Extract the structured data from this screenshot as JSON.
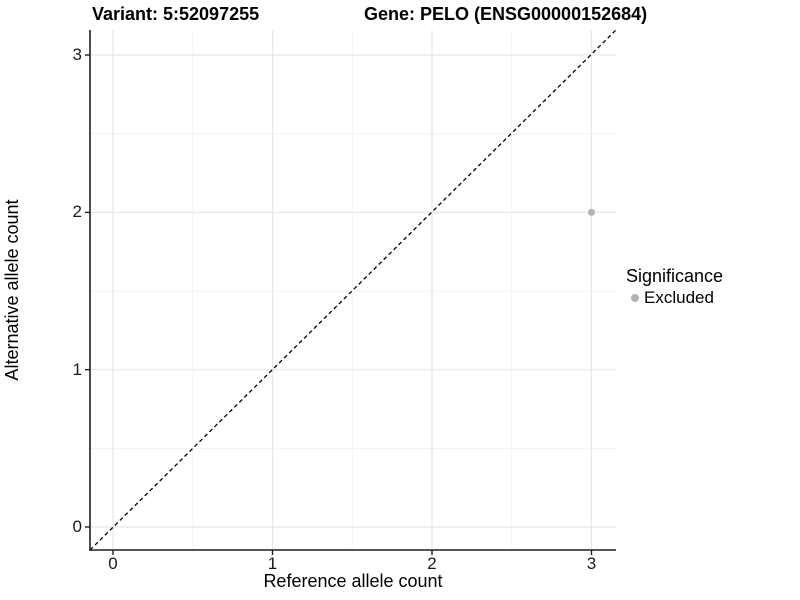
{
  "chart_data": {
    "type": "scatter",
    "title_left": "Variant: 5:52097255",
    "title_right": "Gene: PELO (ENSG00000152684)",
    "xlabel": "Reference allele count",
    "ylabel": "Alternative allele count",
    "xlim": [
      -0.15,
      3.15
    ],
    "ylim": [
      -0.15,
      3.15
    ],
    "x_ticks": [
      0,
      1,
      2,
      3
    ],
    "y_ticks": [
      0,
      1,
      2,
      3
    ],
    "x_tick_labels": [
      "0",
      "1",
      "2",
      "3"
    ],
    "y_tick_labels": [
      "0",
      "1",
      "2",
      "3"
    ],
    "grid": "on",
    "series": [
      {
        "name": "Excluded",
        "color": "#b3b3b3",
        "points": [
          {
            "x": 3,
            "y": 2
          }
        ]
      }
    ],
    "reference_line": {
      "equation": "y = x",
      "style": "dashed",
      "color": "#000000"
    },
    "legend": {
      "title": "Significance",
      "position": "right",
      "entries": [
        {
          "label": "Excluded",
          "color": "#b3b3b3"
        }
      ]
    }
  },
  "colors": {
    "background": "#ffffff",
    "grid_major": "#e7e7e7",
    "grid_minor": "#f3f3f3",
    "axis_line": "#1f1f1f",
    "tick_text": "#1a1a1a",
    "point": "#b3b3b3"
  }
}
